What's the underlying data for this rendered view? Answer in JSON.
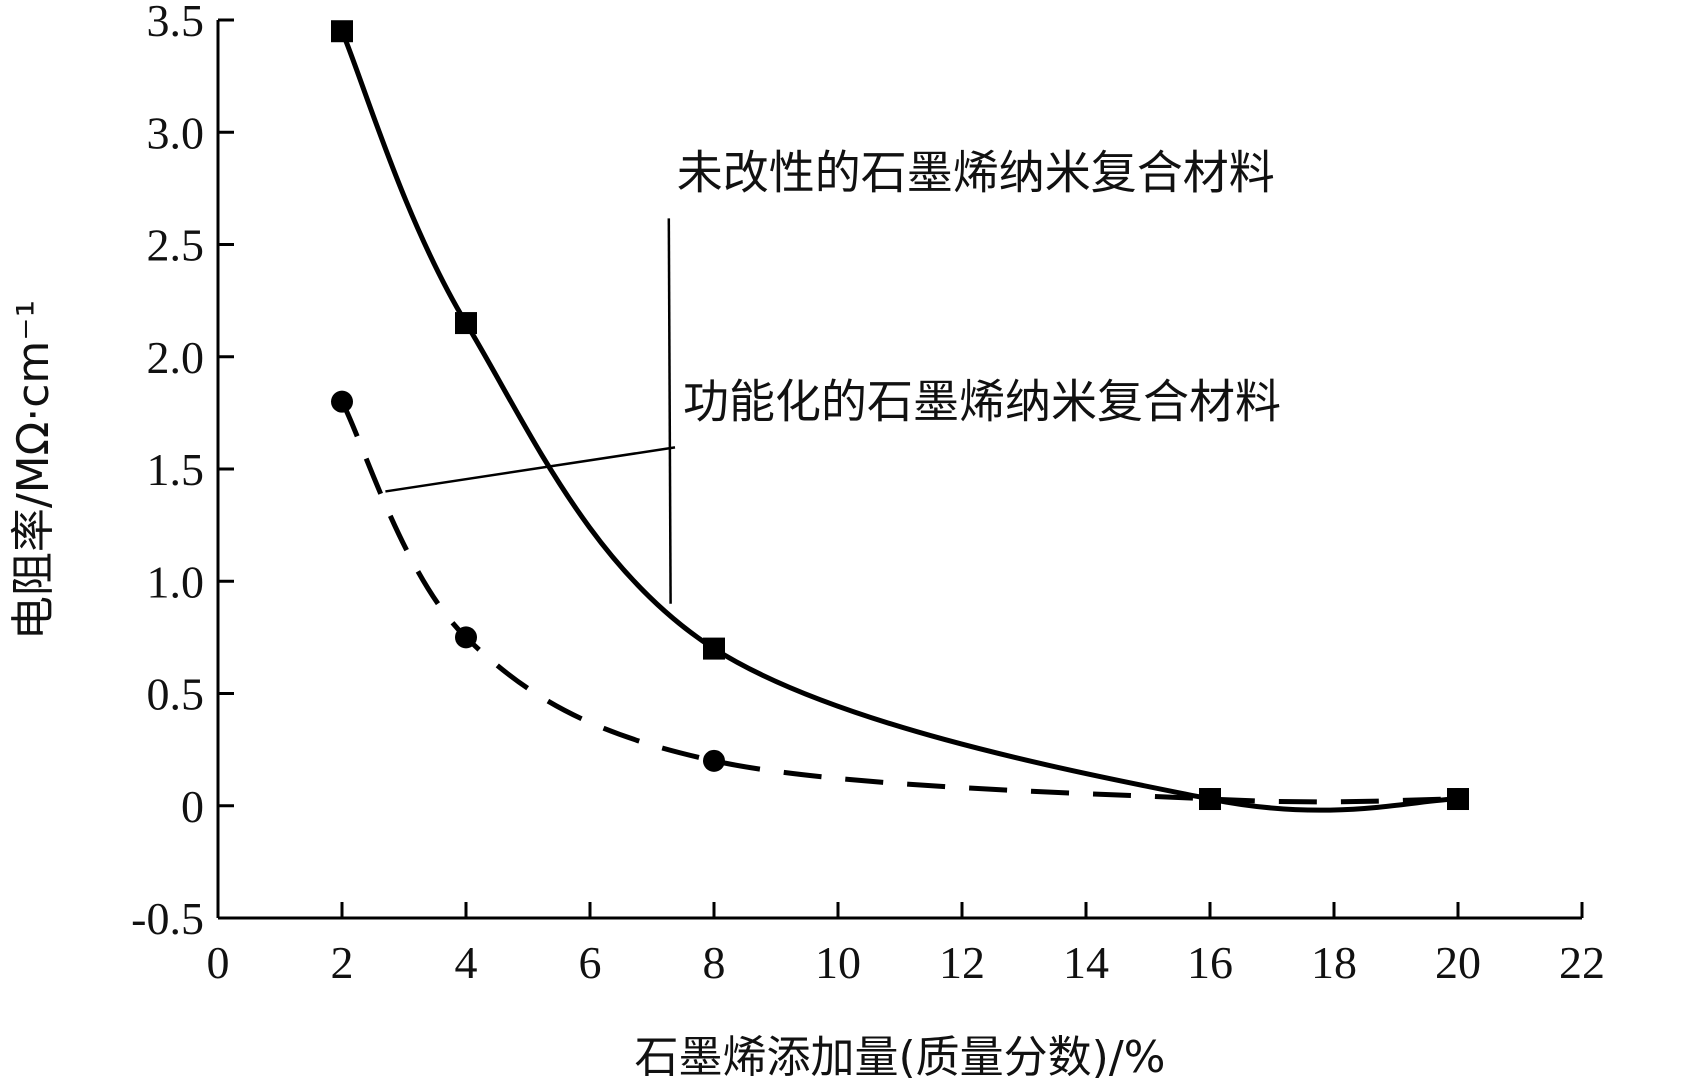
{
  "chart_data": {
    "type": "line",
    "title": "",
    "xlabel": "石墨烯添加量(质量分数)/%",
    "ylabel": "电阻率/MΩ·cm⁻¹",
    "xlim": [
      0,
      22
    ],
    "ylim": [
      -0.5,
      3.5
    ],
    "xticks": [
      0,
      2,
      4,
      6,
      8,
      10,
      12,
      14,
      16,
      18,
      20,
      22
    ],
    "yticks": [
      -0.5,
      0,
      0.5,
      1.0,
      1.5,
      2.0,
      2.5,
      3.0,
      3.5
    ],
    "ytick_labels": [
      "-0.5",
      "0",
      "0.5",
      "1.0",
      "1.5",
      "2.0",
      "2.5",
      "3.0",
      "3.5"
    ],
    "grid": false,
    "legend": "none",
    "series": [
      {
        "name": "未改性的石墨烯纳米复合材料",
        "line_style": "solid",
        "marker": "square",
        "color": "#000000",
        "x": [
          2,
          4,
          8,
          16,
          20
        ],
        "y": [
          3.45,
          2.15,
          0.7,
          0.03,
          0.03
        ]
      },
      {
        "name": "功能化的石墨烯纳米复合材料",
        "line_style": "dashed",
        "marker": "circle",
        "color": "#000000",
        "x": [
          2,
          4,
          8,
          16,
          20
        ],
        "y": [
          1.8,
          0.75,
          0.2,
          0.03,
          0.03
        ]
      }
    ],
    "annotations": [
      {
        "text": "未改性的石墨烯纳米复合材料",
        "points_to_x": 7.3,
        "points_to_y": 0.9,
        "text_x": 7.4,
        "text_y": 2.75
      },
      {
        "text": "功能化的石墨烯纳米复合材料",
        "points_to_x": 2.7,
        "points_to_y": 1.4,
        "text_x": 7.5,
        "text_y": 1.73
      }
    ]
  }
}
